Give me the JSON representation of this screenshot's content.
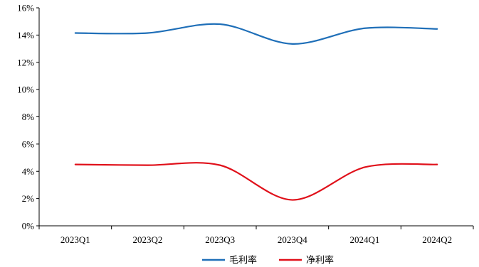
{
  "chart_data": {
    "type": "line",
    "categories": [
      "2023Q1",
      "2023Q2",
      "2023Q3",
      "2023Q4",
      "2024Q1",
      "2024Q2"
    ],
    "series": [
      {
        "name": "毛利率",
        "values": [
          14.15,
          14.15,
          14.8,
          13.35,
          14.5,
          14.45
        ],
        "color": "#1f6fb8"
      },
      {
        "name": "净利率",
        "values": [
          4.5,
          4.45,
          4.45,
          1.9,
          4.3,
          4.5
        ],
        "color": "#e0101a"
      }
    ],
    "y_ticks": [
      "0%",
      "2%",
      "4%",
      "6%",
      "8%",
      "10%",
      "12%",
      "14%",
      "16%"
    ],
    "ylim": [
      0,
      16
    ],
    "grid": false,
    "legend_position": "bottom",
    "smooth": true
  }
}
